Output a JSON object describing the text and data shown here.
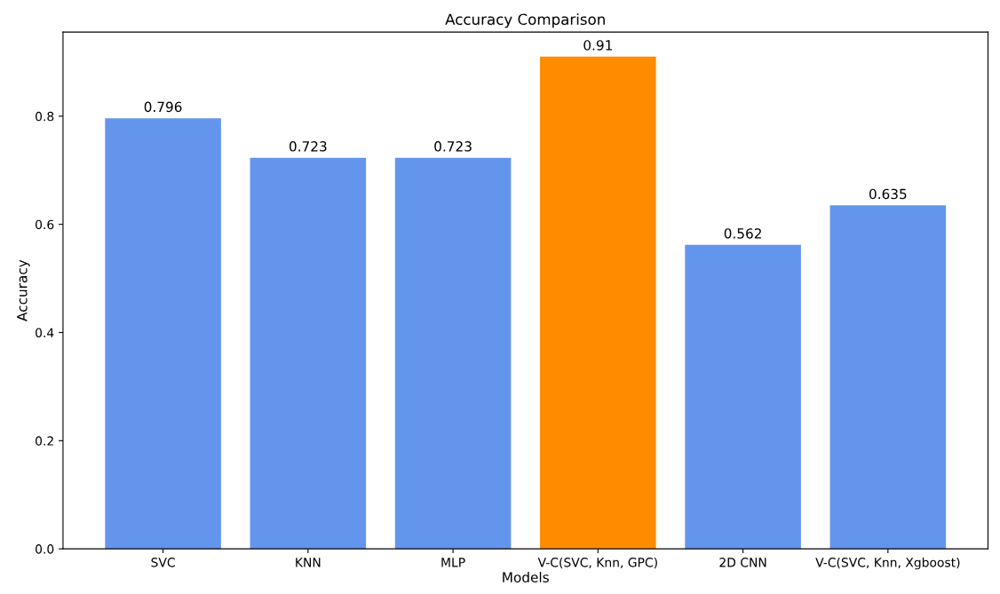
{
  "chart_data": {
    "type": "bar",
    "title": "Accuracy Comparison",
    "xlabel": "Models",
    "ylabel": "Accuracy",
    "categories": [
      "SVC",
      "KNN",
      "MLP",
      "V-C(SVC, Knn, GPC)",
      "2D CNN",
      "V-C(SVC, Knn, Xgboost)"
    ],
    "values": [
      0.796,
      0.723,
      0.723,
      0.91,
      0.562,
      0.635
    ],
    "colors": [
      "#6495ed",
      "#6495ed",
      "#6495ed",
      "#ff8c00",
      "#6495ed",
      "#6495ed"
    ],
    "ylim": [
      0,
      0.9555
    ],
    "yticks": [
      {
        "value": 0,
        "label": "0.0"
      },
      {
        "value": 0.2,
        "label": "0.2"
      },
      {
        "value": 0.4,
        "label": "0.4"
      },
      {
        "value": 0.6,
        "label": "0.6"
      },
      {
        "value": 0.8,
        "label": "0.8"
      }
    ],
    "data_labels": true
  }
}
